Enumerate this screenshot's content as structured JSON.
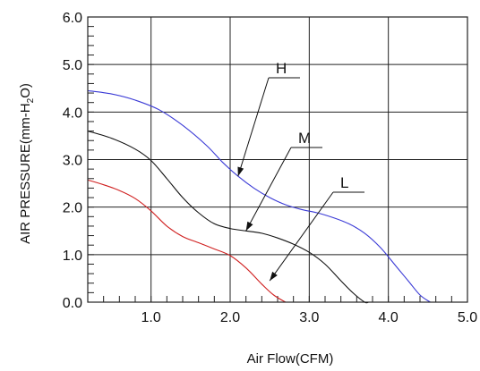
{
  "chart_data": {
    "type": "line",
    "xlabel": "Air Flow(CFM)",
    "ylabel": "AIR PRESSURE(mm-H2O)",
    "ylabel_parts": {
      "pre": "AIR PRESSURE(mm-H",
      "sub1": "2",
      "mid": "O",
      "post": ")"
    },
    "xlim": [
      0.2,
      5.0
    ],
    "ylim": [
      0,
      6.0
    ],
    "x_ticks": [
      "1.0",
      "2.0",
      "3.0",
      "4.0",
      "5.0"
    ],
    "y_ticks": [
      "0.0",
      "1.0",
      "2.0",
      "3.0",
      "4.0",
      "5.0",
      "6.0"
    ],
    "grid": true,
    "series": [
      {
        "name": "H",
        "color": "#3a3ad6",
        "x": [
          0.2,
          0.5,
          0.8,
          1.1,
          1.4,
          1.7,
          1.9,
          2.1,
          2.3,
          2.5,
          2.7,
          2.9,
          3.1,
          3.3,
          3.5,
          3.7,
          3.9,
          4.1,
          4.25,
          4.4,
          4.53
        ],
        "y": [
          4.45,
          4.38,
          4.25,
          4.05,
          3.72,
          3.3,
          2.95,
          2.65,
          2.4,
          2.2,
          2.05,
          1.95,
          1.88,
          1.78,
          1.65,
          1.45,
          1.15,
          0.75,
          0.45,
          0.15,
          0.0
        ]
      },
      {
        "name": "M",
        "color": "#111111",
        "x": [
          0.2,
          0.5,
          0.8,
          1.0,
          1.2,
          1.4,
          1.6,
          1.8,
          2.0,
          2.2,
          2.4,
          2.6,
          2.8,
          3.0,
          3.2,
          3.4,
          3.55,
          3.7,
          3.75
        ],
        "y": [
          3.6,
          3.45,
          3.22,
          2.98,
          2.6,
          2.2,
          1.88,
          1.65,
          1.55,
          1.5,
          1.45,
          1.35,
          1.22,
          1.05,
          0.8,
          0.45,
          0.2,
          0.0,
          0.0
        ]
      },
      {
        "name": "L",
        "color": "#d02020",
        "x": [
          0.2,
          0.4,
          0.6,
          0.8,
          1.0,
          1.2,
          1.4,
          1.6,
          1.8,
          2.0,
          2.2,
          2.4,
          2.55,
          2.7
        ],
        "y": [
          2.57,
          2.47,
          2.35,
          2.18,
          1.92,
          1.6,
          1.38,
          1.25,
          1.12,
          0.98,
          0.72,
          0.38,
          0.15,
          0.0
        ]
      }
    ],
    "annotations": [
      {
        "label": "H",
        "target": [
          2.1,
          2.65
        ]
      },
      {
        "label": "M",
        "target": [
          2.2,
          1.5
        ]
      },
      {
        "label": "L",
        "target": [
          2.5,
          0.45
        ]
      }
    ]
  }
}
